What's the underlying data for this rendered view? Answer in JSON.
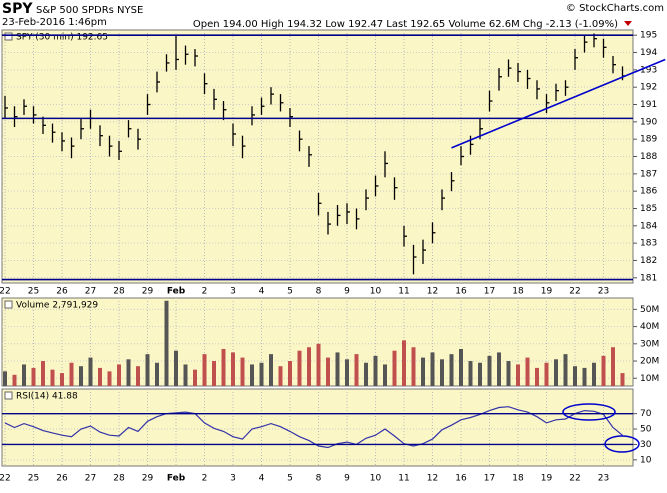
{
  "header": {
    "symbol": "SPY",
    "name": "S&P 500 SPDRs NYSE",
    "date": "23-Feb-2016 1:46pm",
    "quote": "Open 194.00  High 194.32  Low 192.47  Last 192.65  Volume 62.6M  Chg -2.13 (-1.09%)",
    "credit": "© StockCharts.com"
  },
  "chart_data": [
    {
      "type": "hlc",
      "label": "SPY (30 min) 192.65",
      "color": "#000000",
      "ylim": [
        180.7,
        195.3
      ],
      "yticks": [
        181,
        182,
        183,
        184,
        185,
        186,
        187,
        188,
        189,
        190,
        191,
        192,
        193,
        194,
        195
      ],
      "xticks": [
        {
          "value": 0,
          "label": "22"
        },
        {
          "value": 3,
          "label": "25"
        },
        {
          "value": 6,
          "label": "26"
        },
        {
          "value": 9,
          "label": "27"
        },
        {
          "value": 12,
          "label": "28"
        },
        {
          "value": 15,
          "label": "29"
        },
        {
          "value": 18,
          "label": "Feb"
        },
        {
          "value": 21,
          "label": "2"
        },
        {
          "value": 24,
          "label": "3"
        },
        {
          "value": 27,
          "label": "4"
        },
        {
          "value": 30,
          "label": "5"
        },
        {
          "value": 33,
          "label": "8"
        },
        {
          "value": 36,
          "label": "9"
        },
        {
          "value": 39,
          "label": "10"
        },
        {
          "value": 42,
          "label": "11"
        },
        {
          "value": 45,
          "label": "12"
        },
        {
          "value": 48,
          "label": "16"
        },
        {
          "value": 51,
          "label": "17"
        },
        {
          "value": 54,
          "label": "18"
        },
        {
          "value": 57,
          "label": "19"
        },
        {
          "value": 60,
          "label": "22"
        },
        {
          "value": 63,
          "label": "23"
        }
      ],
      "high": [
        191.5,
        190.9,
        191.3,
        190.9,
        190.3,
        189.9,
        189.4,
        189.1,
        190.2,
        190.7,
        189.8,
        189.2,
        188.9,
        190.1,
        189.6,
        191.6,
        192.9,
        193.9,
        195.0,
        194.4,
        194.2,
        192.8,
        191.9,
        191.2,
        189.9,
        189.2,
        190.9,
        191.4,
        192.0,
        191.6,
        190.8,
        189.5,
        188.6,
        185.9,
        184.8,
        185.2,
        185.3,
        185.0,
        186.1,
        186.9,
        188.3,
        186.8,
        184.0,
        182.9,
        183.2,
        184.2,
        186.1,
        187.1,
        188.6,
        189.2,
        190.2,
        191.8,
        193.1,
        193.6,
        193.4,
        193.0,
        192.4,
        191.6,
        192.2,
        192.4,
        194.2,
        195.0,
        195.1,
        194.8,
        193.8,
        193.2
      ],
      "low": [
        190.2,
        189.7,
        190.4,
        189.9,
        189.3,
        188.8,
        188.3,
        187.9,
        189.0,
        189.6,
        188.6,
        188.0,
        187.8,
        189.1,
        188.4,
        190.4,
        191.7,
        192.9,
        193.0,
        193.3,
        193.2,
        191.6,
        190.7,
        190.1,
        188.6,
        187.9,
        189.8,
        190.4,
        191.0,
        190.6,
        189.7,
        188.3,
        187.4,
        184.6,
        183.5,
        184.0,
        184.1,
        183.8,
        184.9,
        185.7,
        186.8,
        185.5,
        182.8,
        181.2,
        181.8,
        183.0,
        184.9,
        186.0,
        187.5,
        188.1,
        189.0,
        190.6,
        191.8,
        192.6,
        192.3,
        191.9,
        191.3,
        190.5,
        191.2,
        191.5,
        193.0,
        194.0,
        194.3,
        193.7,
        192.8,
        192.4
      ],
      "close": [
        190.8,
        190.3,
        190.9,
        190.4,
        189.8,
        189.4,
        188.9,
        188.6,
        189.6,
        190.2,
        189.2,
        188.6,
        188.3,
        189.6,
        189.0,
        191.0,
        192.3,
        193.4,
        193.6,
        193.9,
        193.8,
        192.2,
        191.3,
        190.7,
        189.3,
        188.6,
        190.4,
        190.9,
        191.6,
        191.1,
        190.3,
        189.0,
        188.1,
        185.3,
        184.1,
        184.6,
        184.8,
        184.4,
        185.6,
        186.3,
        187.6,
        186.2,
        183.4,
        182.2,
        182.6,
        183.6,
        185.6,
        186.6,
        188.0,
        188.7,
        189.6,
        191.2,
        192.6,
        193.1,
        192.9,
        192.5,
        191.9,
        191.1,
        191.8,
        192.0,
        193.7,
        194.6,
        194.8,
        194.3,
        193.3,
        192.65
      ],
      "hlines": [
        {
          "value": 195.0,
          "color": "#00008b"
        },
        {
          "value": 190.2,
          "color": "#00008b"
        },
        {
          "value": 180.9,
          "color": "#00008b"
        }
      ],
      "trendline": {
        "x": [
          47,
          69.5
        ],
        "y": [
          188.5,
          193.6
        ],
        "color": "#0000cd"
      }
    },
    {
      "type": "bar",
      "label": "Volume 2,791,929",
      "up_color": "#555555",
      "down_color": "#c0504d",
      "ylim": [
        5.5,
        56.6
      ],
      "yticks": [
        {
          "value": 10,
          "label": "10M"
        },
        {
          "value": 20,
          "label": "20M"
        },
        {
          "value": 30,
          "label": "30M"
        },
        {
          "value": 40,
          "label": "40M"
        },
        {
          "value": 50,
          "label": "50M"
        }
      ],
      "values": [
        14,
        12,
        18,
        16,
        20,
        15,
        13,
        19,
        17,
        22,
        16,
        14,
        18,
        21,
        17,
        24,
        19,
        55,
        26,
        18,
        15,
        24,
        20,
        27,
        25,
        22,
        18,
        19,
        24,
        17,
        20,
        26,
        28,
        30,
        22,
        25,
        21,
        24,
        19,
        23,
        18,
        26,
        32,
        28,
        22,
        25,
        21,
        24,
        27,
        20,
        19,
        23,
        25,
        20,
        18,
        22,
        16,
        19,
        21,
        24,
        17,
        16,
        19,
        23,
        28,
        13
      ]
    },
    {
      "type": "line",
      "label": "RSI(14) 41.88",
      "color": "#3333aa",
      "ylim": [
        2,
        102
      ],
      "yticks": [
        10,
        30,
        50,
        70
      ],
      "levels": [
        {
          "value": 70,
          "color": "#00008b"
        },
        {
          "value": 30,
          "color": "#00008b"
        }
      ],
      "values": [
        58,
        52,
        57,
        53,
        48,
        45,
        42,
        40,
        50,
        54,
        46,
        42,
        41,
        52,
        47,
        60,
        66,
        70,
        71,
        72,
        70,
        58,
        51,
        47,
        40,
        37,
        50,
        53,
        57,
        53,
        47,
        40,
        35,
        28,
        26,
        31,
        33,
        30,
        38,
        42,
        50,
        41,
        31,
        28,
        31,
        37,
        49,
        55,
        62,
        65,
        69,
        74,
        78,
        79,
        75,
        72,
        66,
        58,
        62,
        63,
        70,
        74,
        73,
        69,
        52,
        41.88
      ]
    }
  ]
}
